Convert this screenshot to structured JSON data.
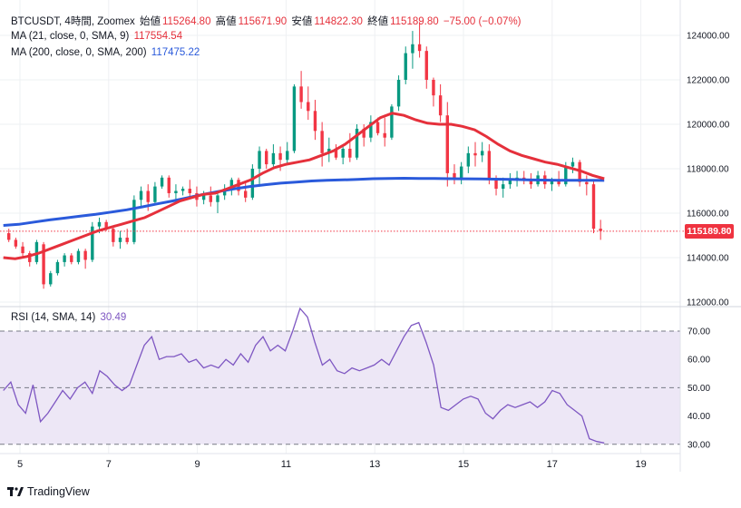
{
  "header": {
    "symbol": "BTCUSDT, 4時間, Zoomex",
    "open_label": "始値",
    "open": "115264.80",
    "high_label": "高値",
    "high": "115671.90",
    "low_label": "安値",
    "low": "114822.30",
    "close_label": "終値",
    "close": "115189.80",
    "change": "−75.00 (−0.07%)"
  },
  "indicators": {
    "ma21": {
      "label": "MA (21, close, 0, SMA, 9)",
      "value": "117554.54",
      "color": "#e5303b"
    },
    "ma200": {
      "label": "MA (200, close, 0, SMA, 200)",
      "value": "117475.22",
      "color": "#2a5adb"
    },
    "rsi": {
      "label": "RSI (14, SMA, 14)",
      "value": "30.49",
      "color": "#7e57c2"
    }
  },
  "last_price_tag": "115189.80",
  "brand": "TradingView",
  "colors": {
    "up": "#089981",
    "down": "#f23645",
    "grid": "#eef0f3",
    "rsi_band": "#ede7f6"
  },
  "chart_data": [
    {
      "type": "candlestick",
      "y_ticks": [
        "124000.00",
        "122000.00",
        "120000.00",
        "118000.00",
        "116000.00",
        "114000.00",
        "112000.00"
      ],
      "ylim": [
        112000,
        125000
      ],
      "x_ticks": [
        {
          "label": "5",
          "day": 5
        },
        {
          "label": "7",
          "day": 7
        },
        {
          "label": "9",
          "day": 9
        },
        {
          "label": "11",
          "day": 11
        },
        {
          "label": "13",
          "day": 13
        },
        {
          "label": "15",
          "day": 15
        },
        {
          "label": "17",
          "day": 17
        },
        {
          "label": "19",
          "day": 19
        }
      ],
      "day_axis_start": 4.67,
      "candles": [
        [
          115100,
          115300,
          114700,
          114800
        ],
        [
          114800,
          114900,
          114400,
          114500
        ],
        [
          114500,
          114700,
          114000,
          114200
        ],
        [
          114200,
          114300,
          113600,
          113800
        ],
        [
          113800,
          114800,
          113700,
          114700
        ],
        [
          114600,
          114700,
          112600,
          112800
        ],
        [
          112800,
          113400,
          112700,
          113300
        ],
        [
          113300,
          113900,
          113200,
          113800
        ],
        [
          113800,
          114200,
          113600,
          114100
        ],
        [
          114100,
          114200,
          113700,
          113800
        ],
        [
          113800,
          114400,
          113700,
          114300
        ],
        [
          114300,
          114400,
          113500,
          113900
        ],
        [
          113900,
          115600,
          113800,
          115400
        ],
        [
          115400,
          115800,
          115100,
          115600
        ],
        [
          115600,
          115700,
          115200,
          115300
        ],
        [
          115300,
          115400,
          114500,
          114700
        ],
        [
          114700,
          115200,
          114400,
          114900
        ],
        [
          114900,
          115300,
          114600,
          114700
        ],
        [
          114700,
          116800,
          114600,
          116600
        ],
        [
          116600,
          117200,
          116300,
          117000
        ],
        [
          117000,
          117300,
          116100,
          116500
        ],
        [
          116500,
          117400,
          116400,
          117200
        ],
        [
          117200,
          117700,
          117100,
          117600
        ],
        [
          117600,
          117700,
          116700,
          116900
        ],
        [
          116900,
          117300,
          116600,
          117000
        ],
        [
          117000,
          117200,
          116800,
          117100
        ],
        [
          117100,
          117500,
          116700,
          116900
        ],
        [
          116900,
          117200,
          116300,
          116600
        ],
        [
          116600,
          117000,
          116400,
          116800
        ],
        [
          116800,
          117200,
          116300,
          116500
        ],
        [
          116500,
          116900,
          116000,
          116800
        ],
        [
          116800,
          117300,
          116600,
          117100
        ],
        [
          117100,
          117600,
          116800,
          117500
        ],
        [
          117500,
          117600,
          116800,
          117000
        ],
        [
          117000,
          117400,
          116500,
          116700
        ],
        [
          116700,
          118200,
          116600,
          118000
        ],
        [
          118000,
          119000,
          117200,
          118800
        ],
        [
          118800,
          118900,
          118000,
          118200
        ],
        [
          118200,
          119100,
          118100,
          118700
        ],
        [
          118700,
          119000,
          117900,
          118400
        ],
        [
          118400,
          119200,
          118200,
          118800
        ],
        [
          118800,
          121800,
          118700,
          121700
        ],
        [
          121700,
          122400,
          120700,
          121000
        ],
        [
          121000,
          121700,
          120200,
          120600
        ],
        [
          120600,
          121100,
          119300,
          119700
        ],
        [
          119700,
          120100,
          118100,
          118700
        ],
        [
          118700,
          119400,
          118300,
          118900
        ],
        [
          118900,
          119100,
          118400,
          118500
        ],
        [
          118500,
          119100,
          118200,
          118900
        ],
        [
          118900,
          119600,
          118300,
          118500
        ],
        [
          118500,
          120000,
          118400,
          119800
        ],
        [
          119800,
          120000,
          119000,
          119400
        ],
        [
          119400,
          120400,
          119200,
          120100
        ],
        [
          120100,
          120300,
          119500,
          119600
        ],
        [
          119600,
          120300,
          119000,
          119400
        ],
        [
          119400,
          120900,
          119300,
          120800
        ],
        [
          120800,
          122200,
          120600,
          122000
        ],
        [
          122000,
          123500,
          121800,
          123200
        ],
        [
          123200,
          124200,
          122500,
          123600
        ],
        [
          123600,
          124600,
          123000,
          123300
        ],
        [
          123300,
          123500,
          121600,
          122000
        ],
        [
          122000,
          122100,
          120800,
          121300
        ],
        [
          121300,
          121800,
          120100,
          120400
        ],
        [
          120400,
          121000,
          117200,
          117800
        ],
        [
          117800,
          118200,
          117300,
          117500
        ],
        [
          117500,
          118300,
          117300,
          118100
        ],
        [
          118100,
          119000,
          117800,
          118700
        ],
        [
          118700,
          119200,
          118100,
          118600
        ],
        [
          118600,
          119200,
          118300,
          118800
        ],
        [
          118800,
          119100,
          117300,
          117500
        ],
        [
          117500,
          117700,
          116800,
          117100
        ],
        [
          117100,
          117600,
          116700,
          117300
        ],
        [
          117300,
          117800,
          117100,
          117500
        ],
        [
          117500,
          117900,
          117200,
          117600
        ],
        [
          117600,
          117900,
          117300,
          117500
        ],
        [
          117500,
          117800,
          117100,
          117300
        ],
        [
          117300,
          117900,
          117200,
          117700
        ],
        [
          117700,
          117900,
          117100,
          117300
        ],
        [
          117300,
          117600,
          117000,
          117500
        ],
        [
          117500,
          117900,
          117200,
          117300
        ],
        [
          117300,
          118300,
          117200,
          118100
        ],
        [
          118100,
          118500,
          117800,
          118300
        ],
        [
          118300,
          118400,
          117200,
          117400
        ],
        [
          117400,
          117700,
          116800,
          117300
        ],
        [
          117300,
          117500,
          115100,
          115300
        ],
        [
          115300,
          115700,
          114800,
          115200
        ]
      ],
      "ma21": [
        114000,
        113950,
        114050,
        114200,
        114400,
        114600,
        114800,
        115000,
        115200,
        115350,
        115500,
        115650,
        115800,
        116050,
        116300,
        116550,
        116700,
        116850,
        116900,
        117100,
        117300,
        117500,
        117800,
        118050,
        118200,
        118300,
        118400,
        118600,
        118800,
        119100,
        119500,
        119900,
        120300,
        120500,
        120400,
        120200,
        120050,
        120000,
        120000,
        119900,
        119750,
        119450,
        119100,
        118800,
        118600,
        118450,
        118300,
        118200,
        118050,
        117900,
        117700,
        117550
      ],
      "ma200": [
        115450,
        115500,
        115600,
        115700,
        115780,
        115870,
        115950,
        116050,
        116150,
        116280,
        116420,
        116550,
        116700,
        116850,
        116980,
        117100,
        117200,
        117280,
        117350,
        117400,
        117450,
        117480,
        117500,
        117520,
        117550,
        117560,
        117570,
        117565,
        117560,
        117550,
        117545,
        117540,
        117530,
        117520,
        117500,
        117490,
        117480,
        117478,
        117476,
        117475
      ],
      "last_price": 115189.8
    },
    {
      "type": "line",
      "name": "RSI",
      "y_ticks": [
        "70.00",
        "60.00",
        "50.00",
        "40.00",
        "30.00"
      ],
      "ylim": [
        28,
        76
      ],
      "band": [
        30,
        70
      ],
      "midline": 50,
      "values": [
        49,
        52,
        44,
        41,
        51,
        38,
        41,
        45,
        49,
        46,
        50,
        52,
        48,
        56,
        54,
        51,
        49,
        51,
        58,
        65,
        68,
        60,
        61,
        61,
        62,
        59,
        60,
        57,
        58,
        57,
        60,
        58,
        62,
        59,
        65,
        68,
        63,
        65,
        63,
        70,
        78,
        75,
        66,
        58,
        60,
        56,
        55,
        57,
        56,
        57,
        58,
        60,
        58,
        63,
        68,
        72,
        73,
        66,
        58,
        43,
        42,
        44,
        46,
        47,
        46,
        41,
        39,
        42,
        44,
        43,
        44,
        45,
        43,
        45,
        49,
        48,
        44,
        42,
        40,
        32,
        31,
        30.49
      ]
    }
  ]
}
